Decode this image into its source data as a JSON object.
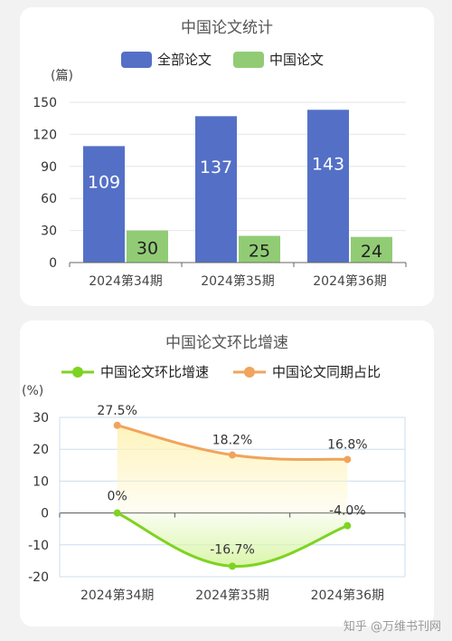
{
  "charts": [
    {
      "title": "中国论文统计",
      "unit": "(篇)",
      "legend": [
        "全部论文",
        "中国论文"
      ]
    },
    {
      "title": "中国论文环比增速",
      "unit": "(%)",
      "legend": [
        "中国论文环比增速",
        "中国论文同期占比"
      ]
    }
  ],
  "watermark": "知乎 @万维书刊网",
  "colors": {
    "all_papers": "#5470c6",
    "china_papers": "#91cc75",
    "growth_line": "#7ed321",
    "share_line": "#f0a45d"
  },
  "chart_data": [
    {
      "type": "bar",
      "title": "中国论文统计",
      "ylabel": "(篇)",
      "categories": [
        "2024第34期",
        "2024第35期",
        "2024第36期"
      ],
      "series": [
        {
          "name": "全部论文",
          "values": [
            109,
            137,
            143
          ]
        },
        {
          "name": "中国论文",
          "values": [
            30,
            25,
            24
          ]
        }
      ],
      "ylim": [
        0,
        150
      ],
      "yticks": [
        0,
        30,
        60,
        90,
        120,
        150
      ],
      "legend": "top-center",
      "grid": true
    },
    {
      "type": "line",
      "title": "中国论文环比增速",
      "ylabel": "(%)",
      "categories": [
        "2024第34期",
        "2024第35期",
        "2024第36期"
      ],
      "series": [
        {
          "name": "中国论文环比增速",
          "values": [
            0,
            -16.7,
            -4.0
          ],
          "labels": [
            "0%",
            "-16.7%",
            "-4.0%"
          ]
        },
        {
          "name": "中国论文同期占比",
          "values": [
            27.5,
            18.2,
            16.8
          ],
          "labels": [
            "27.5%",
            "18.2%",
            "16.8%"
          ]
        }
      ],
      "ylim": [
        -20,
        30
      ],
      "yticks": [
        30,
        20,
        10,
        0,
        -10,
        -20
      ],
      "legend": "top-center",
      "grid": true
    }
  ]
}
